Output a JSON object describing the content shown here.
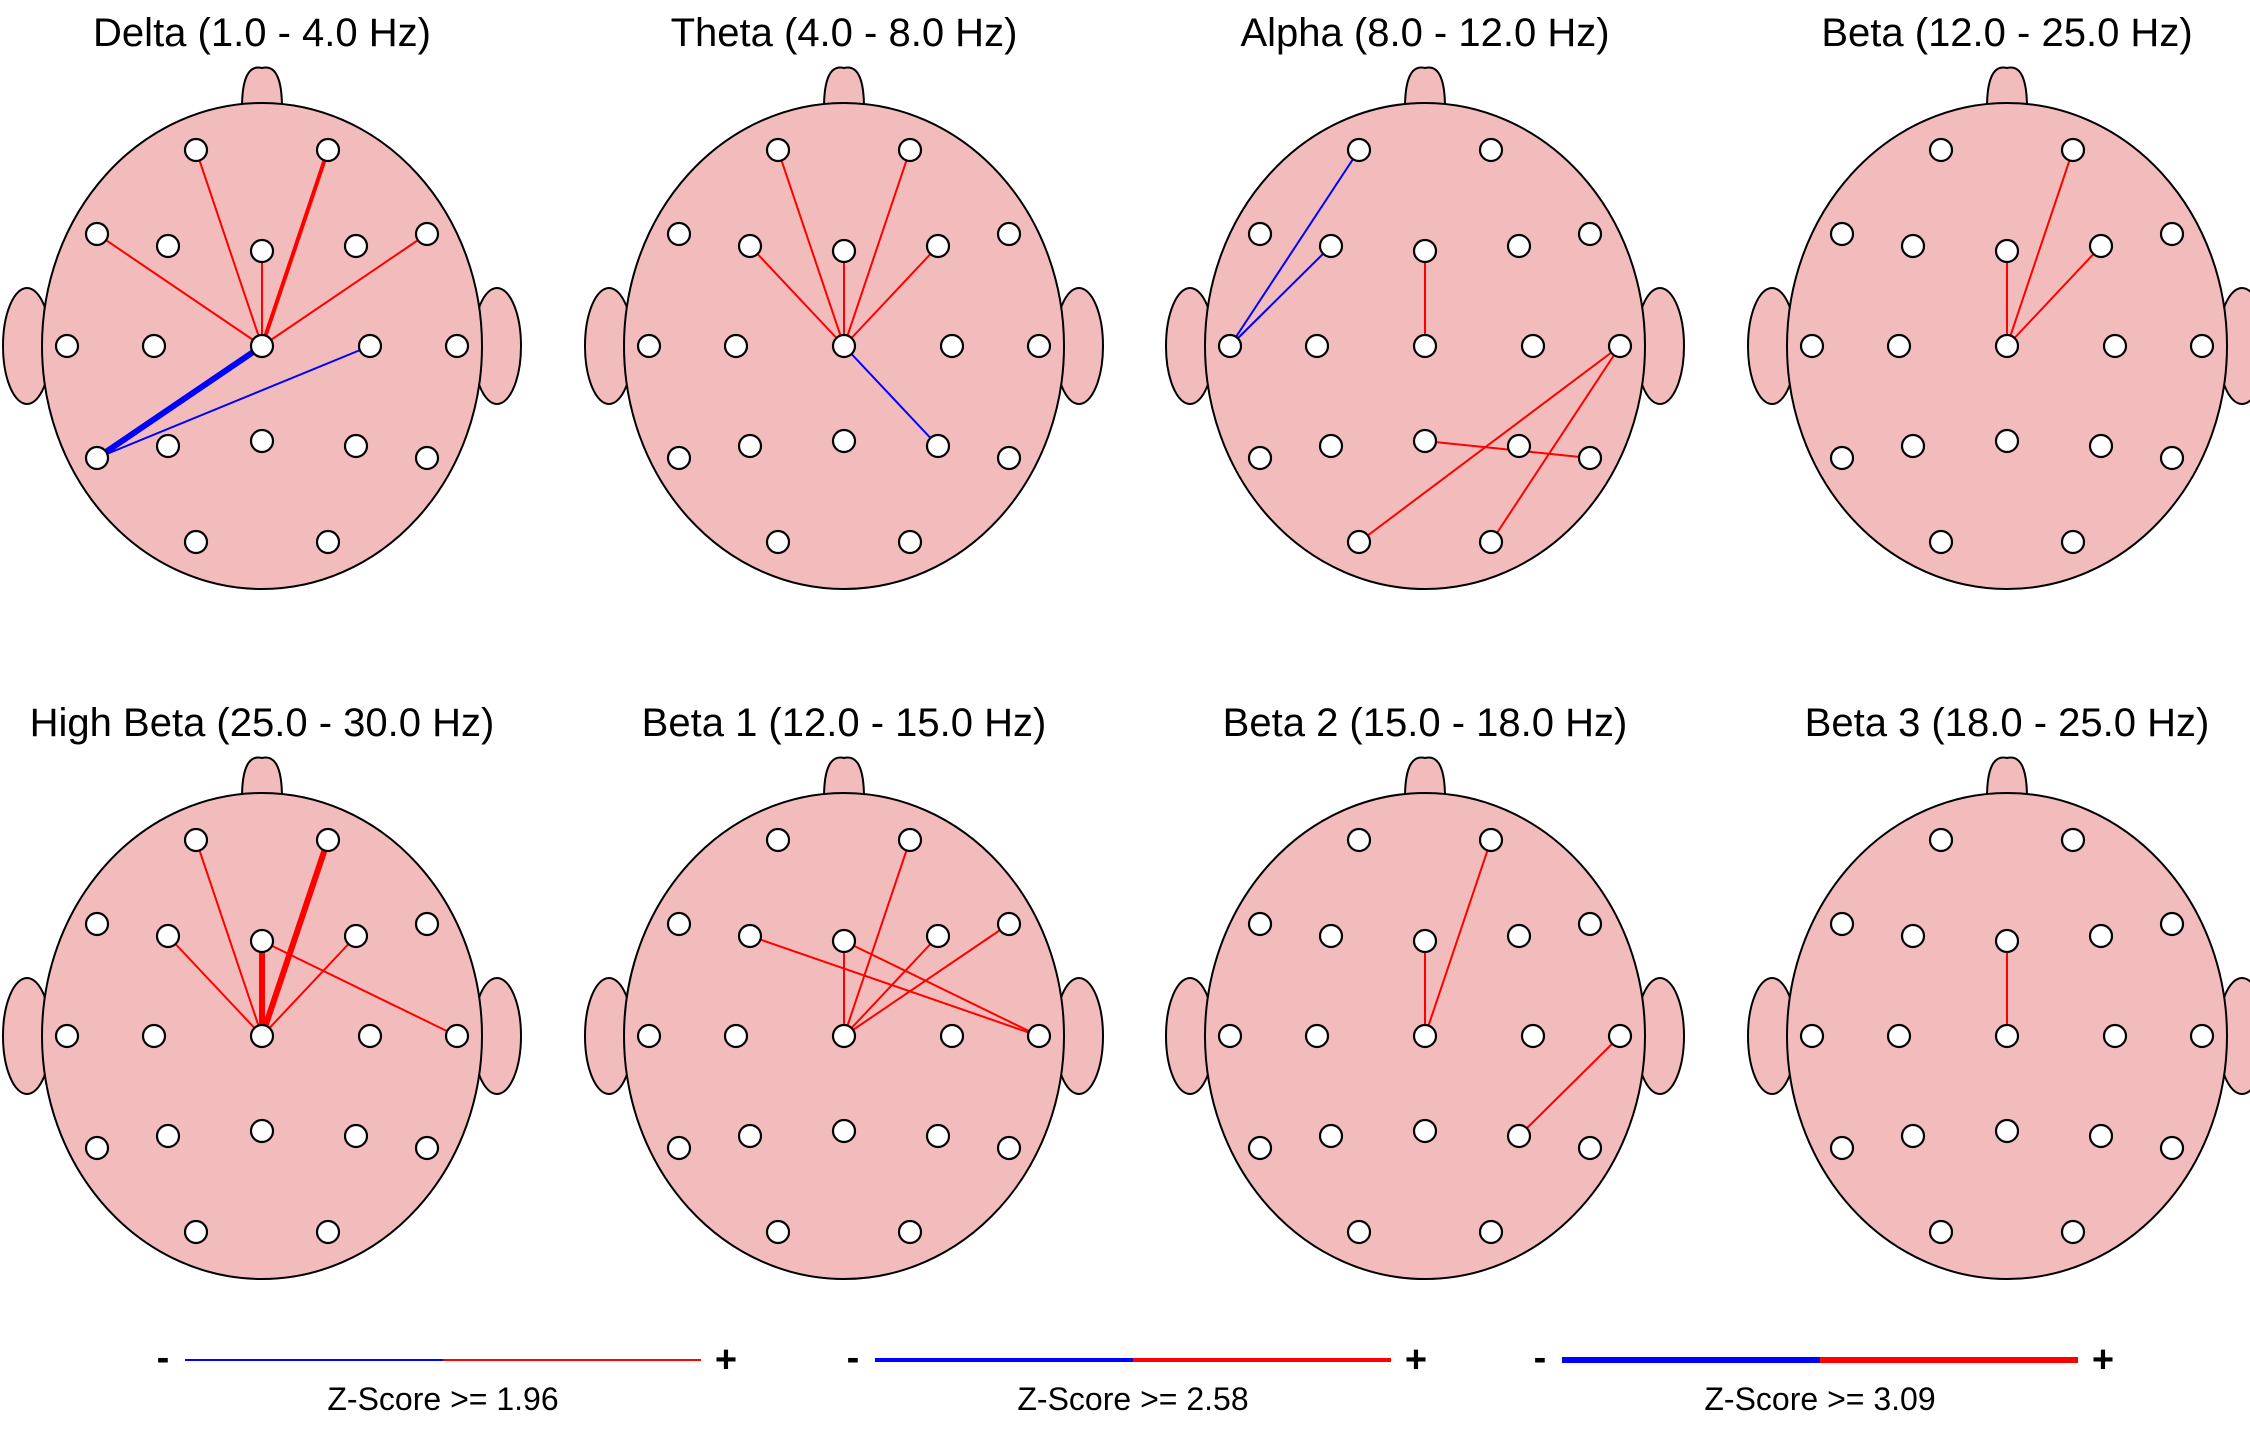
{
  "colors": {
    "head_fill": "#f2bcbc",
    "positive": "#ff0000",
    "negative": "#0000ff"
  },
  "panels": [
    {
      "title": "Delta (1.0 - 4.0 Hz)",
      "connections": [
        {
          "from": "Fp1",
          "to": "Cz",
          "sign": "positive",
          "level": 1
        },
        {
          "from": "Fp2",
          "to": "Cz",
          "sign": "positive",
          "level": 2
        },
        {
          "from": "F7",
          "to": "Cz",
          "sign": "positive",
          "level": 1
        },
        {
          "from": "Fz",
          "to": "Cz",
          "sign": "positive",
          "level": 1
        },
        {
          "from": "F8",
          "to": "Cz",
          "sign": "positive",
          "level": 1
        },
        {
          "from": "T5",
          "to": "Cz",
          "sign": "negative",
          "level": 3
        },
        {
          "from": "T5",
          "to": "C4",
          "sign": "negative",
          "level": 1
        }
      ]
    },
    {
      "title": "Theta (4.0 - 8.0 Hz)",
      "connections": [
        {
          "from": "Fp1",
          "to": "Cz",
          "sign": "positive",
          "level": 1
        },
        {
          "from": "Fp2",
          "to": "Cz",
          "sign": "positive",
          "level": 1
        },
        {
          "from": "Fz",
          "to": "Cz",
          "sign": "positive",
          "level": 1
        },
        {
          "from": "F3",
          "to": "Cz",
          "sign": "positive",
          "level": 1
        },
        {
          "from": "F4",
          "to": "Cz",
          "sign": "positive",
          "level": 1
        },
        {
          "from": "Cz",
          "to": "P4",
          "sign": "negative",
          "level": 1
        }
      ]
    },
    {
      "title": "Alpha (8.0 - 12.0 Hz)",
      "connections": [
        {
          "from": "Fp1",
          "to": "T3",
          "sign": "negative",
          "level": 1
        },
        {
          "from": "F3",
          "to": "T3",
          "sign": "negative",
          "level": 1
        },
        {
          "from": "Fz",
          "to": "Cz",
          "sign": "positive",
          "level": 1
        },
        {
          "from": "T4",
          "to": "O1",
          "sign": "positive",
          "level": 1
        },
        {
          "from": "T4",
          "to": "O2",
          "sign": "positive",
          "level": 1
        },
        {
          "from": "Pz",
          "to": "T6",
          "sign": "positive",
          "level": 1
        }
      ]
    },
    {
      "title": "Beta (12.0 - 25.0 Hz)",
      "connections": [
        {
          "from": "Fp2",
          "to": "Cz",
          "sign": "positive",
          "level": 1
        },
        {
          "from": "Fz",
          "to": "Cz",
          "sign": "positive",
          "level": 1
        },
        {
          "from": "F4",
          "to": "Cz",
          "sign": "positive",
          "level": 1
        }
      ]
    },
    {
      "title": "High Beta (25.0 - 30.0 Hz)",
      "connections": [
        {
          "from": "Fp1",
          "to": "Cz",
          "sign": "positive",
          "level": 1
        },
        {
          "from": "Fp2",
          "to": "Cz",
          "sign": "positive",
          "level": 3
        },
        {
          "from": "F3",
          "to": "Cz",
          "sign": "positive",
          "level": 1
        },
        {
          "from": "Fz",
          "to": "Cz",
          "sign": "positive",
          "level": 3
        },
        {
          "from": "F4",
          "to": "Cz",
          "sign": "positive",
          "level": 1
        },
        {
          "from": "Fz",
          "to": "T4",
          "sign": "positive",
          "level": 1
        }
      ]
    },
    {
      "title": "Beta 1 (12.0 - 15.0 Hz)",
      "connections": [
        {
          "from": "Fp2",
          "to": "Cz",
          "sign": "positive",
          "level": 1
        },
        {
          "from": "F4",
          "to": "Cz",
          "sign": "positive",
          "level": 1
        },
        {
          "from": "F8",
          "to": "Cz",
          "sign": "positive",
          "level": 1
        },
        {
          "from": "Fz",
          "to": "Cz",
          "sign": "positive",
          "level": 1
        },
        {
          "from": "F3",
          "to": "T4",
          "sign": "positive",
          "level": 1
        },
        {
          "from": "Fz",
          "to": "T4",
          "sign": "positive",
          "level": 1
        }
      ]
    },
    {
      "title": "Beta 2 (15.0 - 18.0 Hz)",
      "connections": [
        {
          "from": "Fp2",
          "to": "Cz",
          "sign": "positive",
          "level": 1
        },
        {
          "from": "Fz",
          "to": "Cz",
          "sign": "positive",
          "level": 1
        },
        {
          "from": "T4",
          "to": "P4",
          "sign": "positive",
          "level": 1
        }
      ]
    },
    {
      "title": "Beta 3 (18.0 - 25.0 Hz)",
      "connections": [
        {
          "from": "Fz",
          "to": "Cz",
          "sign": "positive",
          "level": 1
        }
      ]
    }
  ],
  "legend": [
    {
      "minus": "-",
      "plus": "+",
      "label": "Z-Score >= 1.96",
      "level": 1
    },
    {
      "minus": "-",
      "plus": "+",
      "label": "Z-Score >= 2.58",
      "level": 2
    },
    {
      "minus": "-",
      "plus": "+",
      "label": "Z-Score >= 3.09",
      "level": 3
    }
  ]
}
